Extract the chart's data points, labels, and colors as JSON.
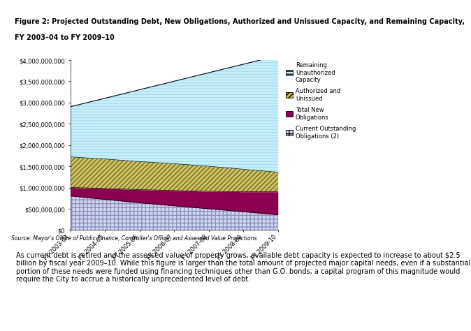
{
  "years": [
    "FY 2003-04",
    "FY 2004-05",
    "FY 2005-06",
    "FY 2006-07",
    "FY 2007-08",
    "FY 2008-09",
    "FY 2009-10"
  ],
  "current_outstanding": [
    800000000,
    720000000,
    640000000,
    570000000,
    500000000,
    430000000,
    360000000
  ],
  "total_new_obligations": [
    200000000,
    260000000,
    310000000,
    360000000,
    410000000,
    470000000,
    540000000
  ],
  "authorized_unissued": [
    720000000,
    690000000,
    660000000,
    630000000,
    590000000,
    530000000,
    460000000
  ],
  "remaining_unauthorized": [
    1180000000,
    1430000000,
    1690000000,
    1940000000,
    2200000000,
    2470000000,
    2740000000
  ],
  "ylim": [
    0,
    4000000000
  ],
  "yticks": [
    0,
    500000000,
    1000000000,
    1500000000,
    2000000000,
    2500000000,
    3000000000,
    3500000000,
    4000000000
  ],
  "ylabels": [
    "$0",
    "$500,000,000",
    "$1,000,000,000",
    "$1,500,000,000",
    "$2,000,000,000",
    "$2,500,000,000",
    "$3,000,000,000",
    "$3,500,000,000",
    "$4,000,000,000"
  ],
  "title_line1": "Figure 2: Projected Outstanding Debt, New Obligations, Authorized and Unissued Capacity, and Remaining Capacity,",
  "title_line2": "FY 2003–04 to FY 2009–10",
  "source_text": "Source: Mayor's Office of Public Finance, Controller's Office, and Assessed Value Projections",
  "body_text": "As current debt is retired and the assessed value of property grows, available debt capacity is expected to increase to about $2.5 billion by fiscal year 2009–10. While this figure is larger than the total amount of projected major capital needs, even if a substantial portion of these needs were funded using financing techniques other than G.O. bonds, a capital program of this magnitude would require the City to accrue a historically unprecedented level of debt.",
  "color_current": "#d0d8f0",
  "color_new": "#8b0050",
  "color_authorized": "#c8b84a",
  "color_remaining": "#c8f0f8",
  "color_authorized_hatch": "#6b6b20",
  "color_current_hatch": "#9090c0",
  "color_remaining_hatch": "#88ccdd",
  "legend_labels": [
    "Remaining\nUnauthorized\nCapacity",
    "Authorized and\nUnissued",
    "Total New\nObligations",
    "Current Outstanding\nObligations (2)"
  ]
}
